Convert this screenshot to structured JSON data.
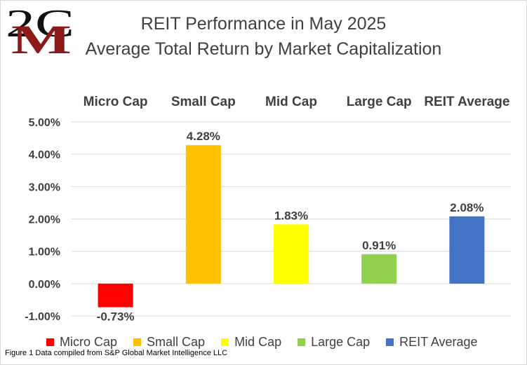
{
  "logo": {
    "text_top": "2C",
    "text_bottom": "M"
  },
  "title": {
    "line1": "REIT Performance in May 2025",
    "line2": "Average Total Return by Market Capitalization"
  },
  "source_note": "Figure 1 Data compiled from S&P Global Market Intelligence LLC",
  "colors": {
    "micro": "#ff0000",
    "small": "#ffc000",
    "mid": "#ffff00",
    "large": "#92d050",
    "average": "#4472c4",
    "text": "#404040",
    "gridline": "#d9d9d9"
  },
  "chart_data": {
    "type": "bar",
    "title": "REIT Performance in May 2025 Average Total Return by Market Capitalization",
    "categories": [
      "Micro Cap",
      "Small Cap",
      "Mid Cap",
      "Large Cap",
      "REIT Average"
    ],
    "values": [
      -0.73,
      4.28,
      1.83,
      0.91,
      2.08
    ],
    "data_labels": [
      "-0.73%",
      "4.28%",
      "1.83%",
      "0.91%",
      "2.08%"
    ],
    "bar_colors": [
      "#ff0000",
      "#ffc000",
      "#ffff00",
      "#92d050",
      "#4472c4"
    ],
    "ylim": [
      -1,
      5
    ],
    "yticks": [
      -1,
      0,
      1,
      2,
      3,
      4,
      5
    ],
    "ytick_labels": [
      "-1.00%",
      "0.00%",
      "1.00%",
      "2.00%",
      "3.00%",
      "4.00%",
      "5.00%"
    ],
    "category_labels_position": "top",
    "grid": true,
    "legend": {
      "position": "bottom",
      "entries": [
        "Micro Cap",
        "Small Cap",
        "Mid Cap",
        "Large Cap",
        "REIT Average"
      ]
    }
  }
}
